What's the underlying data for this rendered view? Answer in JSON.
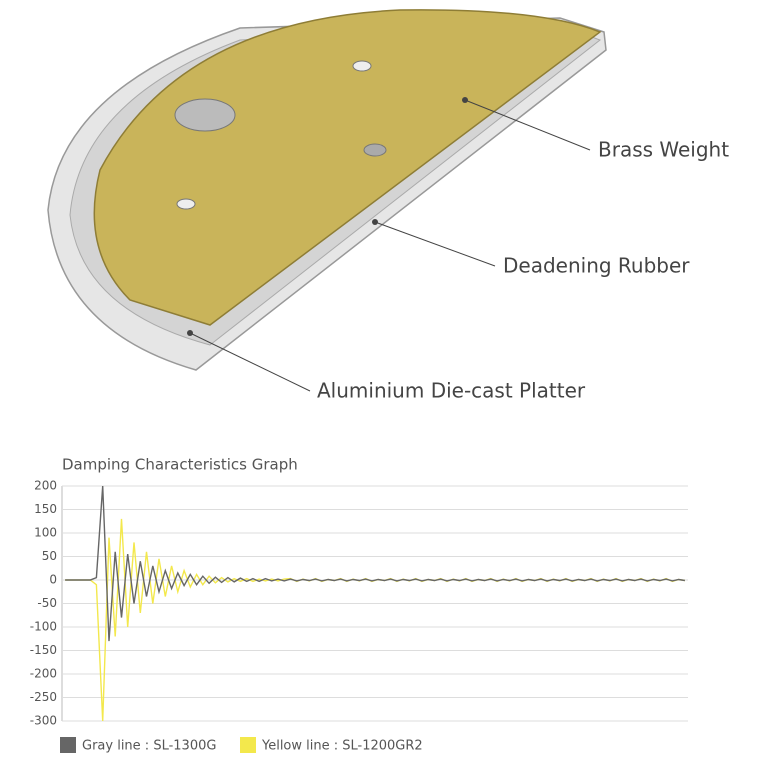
{
  "diagram": {
    "labels": [
      "Brass Weight",
      "Deadening Rubber",
      "Aluminium Die-cast Platter"
    ]
  },
  "chart_data": {
    "type": "line",
    "title": "Damping Characteristics Graph",
    "ylim": [
      -300,
      200
    ],
    "yticks": [
      200,
      150,
      100,
      50,
      0,
      -50,
      -100,
      -150,
      -200,
      -250,
      -300
    ],
    "grid": true,
    "series": [
      {
        "name": "Gray line : SL-1300G",
        "color": "#666666",
        "values": [
          0,
          0,
          0,
          0,
          0,
          5,
          200,
          -130,
          60,
          -80,
          55,
          -50,
          40,
          -35,
          30,
          -25,
          20,
          -18,
          15,
          -12,
          12,
          -10,
          8,
          -7,
          6,
          -5,
          5,
          -4,
          4,
          -3,
          3,
          -3,
          3,
          -2,
          2,
          -2,
          2,
          -2,
          1,
          -1,
          2,
          -2,
          1,
          -1,
          2,
          -2,
          1,
          -1,
          2,
          -2,
          1,
          -1,
          2,
          -2,
          1,
          -1,
          2,
          -2,
          1,
          -1,
          2,
          -2,
          1,
          -1,
          2,
          -2,
          1,
          -1,
          2,
          -2,
          1,
          -1,
          2,
          -2,
          1,
          -1,
          2,
          -2,
          1,
          -1,
          2,
          -2,
          1,
          -1,
          2,
          -2,
          1,
          -1,
          2,
          -2,
          1,
          -1,
          2,
          -2,
          1,
          -1,
          2,
          -2,
          1,
          -1
        ]
      },
      {
        "name": "Yellow line : SL-1200GR2",
        "color": "#f3e84c",
        "values": [
          0,
          0,
          0,
          0,
          0,
          -10,
          -300,
          90,
          -120,
          130,
          -100,
          80,
          -70,
          60,
          -50,
          45,
          -35,
          30,
          -25,
          20,
          -15,
          12,
          -10,
          8,
          -6,
          5,
          -4,
          3,
          -3,
          3,
          -3,
          2,
          -2,
          2,
          -2,
          2,
          3,
          -3,
          2,
          -2,
          3,
          -3,
          1,
          -1,
          3,
          -3,
          2,
          -2,
          3,
          -3,
          1,
          -1,
          3,
          -3,
          2,
          -2,
          3,
          -3,
          1,
          -1,
          3,
          -3,
          2,
          -2,
          3,
          -3,
          1,
          -1,
          3,
          -3,
          2,
          -2,
          3,
          -3,
          1,
          -1,
          3,
          -3,
          2,
          -2,
          3,
          -3,
          1,
          -1,
          3,
          -3,
          2,
          -2,
          3,
          -3,
          1,
          -1,
          3,
          -3,
          2,
          -2,
          3,
          -3,
          1,
          -1
        ]
      }
    ]
  }
}
